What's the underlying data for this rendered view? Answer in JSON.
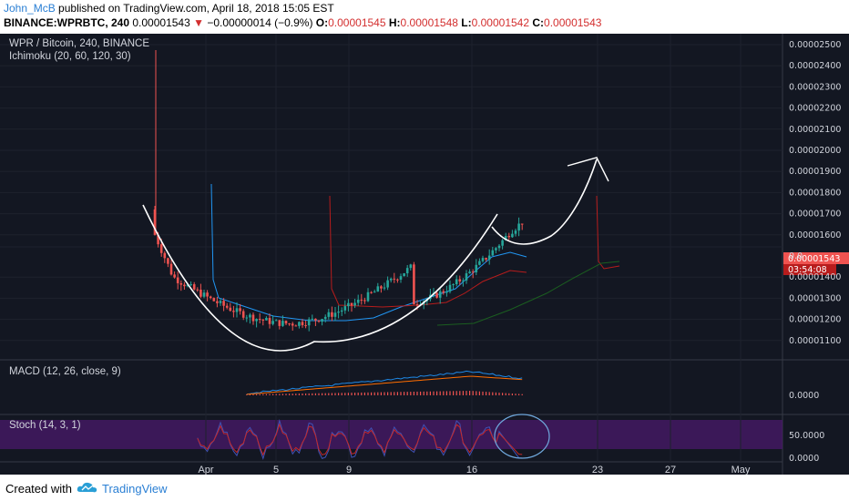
{
  "header": {
    "author": "John_McB",
    "published_text": "published on TradingView.com, April 18, 2018 15:05 EST",
    "symbol": "BINANCE:WPRBTC, 240",
    "last": "0.00001543",
    "change": "−0.00000014 (−0.9%)",
    "open_label": "O:",
    "open": "0.00001545",
    "high_label": "H:",
    "high": "0.00001548",
    "low_label": "L:",
    "low": "0.00001542",
    "close_label": "C:",
    "close": "0.00001543"
  },
  "legend": {
    "title": "WPR / Bitcoin, 240, BINANCE",
    "ichimoku": "Ichimoku (20, 60, 120, 30)",
    "macd": "MACD (12, 26, close, 9)",
    "stoch": "Stoch (14, 3, 1)"
  },
  "price_badge": {
    "value": "0.00001543",
    "timer": "03:54:08"
  },
  "footer": {
    "created": "Created with",
    "brand": "TradingView"
  },
  "colors": {
    "background": "#131722",
    "up": "#26a69a",
    "down": "#ef5350",
    "tenkan": "#2196f3",
    "kijun": "#b71c1c",
    "lagging": "#1b5e20",
    "annotation": "#ffffff",
    "stoch_band": "#7b1fa2",
    "macd_line": "#1e88e5",
    "signal_line": "#ff6d00"
  },
  "chart_data": [
    {
      "type": "candlestick",
      "title": "WPR / Bitcoin, 240, BINANCE",
      "y_ticks": [
        "0.00002500",
        "0.00002400",
        "0.00002300",
        "0.00002200",
        "0.00002100",
        "0.00002000",
        "0.00001900",
        "0.00001800",
        "0.00001700",
        "0.00001600",
        "0.00001543",
        "0.00001400",
        "0.00001300",
        "0.00001200",
        "0.00001100"
      ],
      "ylim": [
        1.09e-05,
        2.52e-05
      ],
      "x_ticks": [
        "Apr",
        "5",
        "9",
        "16",
        "23",
        "27",
        "May"
      ],
      "last_close": 1.543e-05,
      "annotations": [
        "cup-and-handle arc",
        "projected breakout curve to ~0.00002000"
      ]
    },
    {
      "type": "line",
      "title": "MACD (12, 26, close, 9)",
      "y_ticks": [
        "0.0000"
      ],
      "series": [
        {
          "name": "MACD"
        },
        {
          "name": "Signal"
        },
        {
          "name": "Histogram"
        }
      ]
    },
    {
      "type": "line",
      "title": "Stoch (14, 3, 1)",
      "y_ticks": [
        "50.0000",
        "0.0000"
      ],
      "series": [
        {
          "name": "%K"
        },
        {
          "name": "%D"
        }
      ]
    }
  ]
}
